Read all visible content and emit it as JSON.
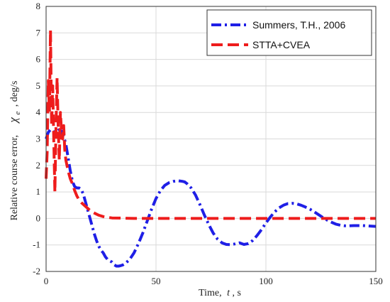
{
  "chart_data": {
    "type": "line",
    "title": "",
    "xlabel": "Time,  t, s",
    "ylabel": "Relative course error,   χe , deg/s",
    "ylabel_parts": {
      "main": "Relative course error,",
      "symbol": "χ",
      "subscript": "e",
      "unit": ", deg/s"
    },
    "xlabel_parts": {
      "main": "Time,",
      "symbol": "t",
      "unit": ", s"
    },
    "xlim": [
      0,
      150
    ],
    "ylim": [
      -2,
      8
    ],
    "xticks": [
      0,
      50,
      100,
      150
    ],
    "yticks": [
      -2,
      -1,
      0,
      1,
      2,
      3,
      4,
      5,
      6,
      7,
      8
    ],
    "grid": true,
    "legend_position": "top-right",
    "series": [
      {
        "name": "Summers, T.H., 2006",
        "color": "#1f1fe6",
        "dash": "dashdot",
        "x": [
          0,
          1,
          2,
          3,
          4,
          5,
          6,
          7,
          8,
          9,
          10,
          11,
          12,
          13,
          14,
          15,
          16,
          17,
          18,
          19,
          20,
          21,
          22,
          23,
          24,
          25,
          26,
          27,
          28,
          29,
          30,
          31,
          32,
          33,
          34,
          35,
          36,
          38,
          40,
          42,
          44,
          46,
          48,
          50,
          52,
          54,
          56,
          58,
          60,
          62,
          63,
          64,
          66,
          68,
          70,
          72,
          74,
          76,
          78,
          80,
          82,
          84,
          86,
          88,
          90,
          92,
          94,
          96,
          98,
          100,
          102,
          104,
          106,
          108,
          110,
          112,
          114,
          116,
          118,
          120,
          122,
          124,
          126,
          128,
          130,
          132,
          134,
          136,
          138,
          140,
          142,
          144,
          146,
          148,
          150
        ],
        "y": [
          3.0,
          3.25,
          3.35,
          3.3,
          3.25,
          3.3,
          3.35,
          3.3,
          3.1,
          2.8,
          2.3,
          1.8,
          1.4,
          1.2,
          1.15,
          1.15,
          1.1,
          0.9,
          0.6,
          0.3,
          0.0,
          -0.3,
          -0.6,
          -0.85,
          -1.05,
          -1.2,
          -1.3,
          -1.45,
          -1.55,
          -1.6,
          -1.65,
          -1.75,
          -1.8,
          -1.8,
          -1.78,
          -1.75,
          -1.7,
          -1.55,
          -1.3,
          -0.95,
          -0.55,
          -0.1,
          0.35,
          0.75,
          1.05,
          1.25,
          1.35,
          1.4,
          1.42,
          1.4,
          1.38,
          1.32,
          1.15,
          0.88,
          0.52,
          0.13,
          -0.23,
          -0.55,
          -0.78,
          -0.92,
          -0.98,
          -0.99,
          -0.96,
          -0.92,
          -0.98,
          -0.95,
          -0.83,
          -0.64,
          -0.42,
          -0.17,
          0.05,
          0.25,
          0.4,
          0.5,
          0.56,
          0.57,
          0.55,
          0.5,
          0.43,
          0.35,
          0.25,
          0.14,
          0.03,
          -0.07,
          -0.15,
          -0.22,
          -0.26,
          -0.28,
          -0.28,
          -0.27,
          -0.27,
          -0.27,
          -0.28,
          -0.29,
          -0.3
        ]
      },
      {
        "name": "STTA+CVEA",
        "color": "#ee1c1c",
        "dash": "dashed",
        "x": [
          0,
          0.5,
          1,
          1.5,
          2,
          2.5,
          3,
          3.5,
          4,
          4.5,
          5,
          5.5,
          6,
          6.5,
          7,
          7.5,
          8,
          8.5,
          9,
          10,
          11,
          12,
          13,
          14,
          15,
          16,
          18,
          20,
          22,
          24,
          26,
          28,
          30,
          35,
          40,
          50,
          60,
          80,
          100,
          120,
          140,
          150
        ],
        "y": [
          1.5,
          2.5,
          5.2,
          4.0,
          7.1,
          3.5,
          5.0,
          3.0,
          1.0,
          3.5,
          5.3,
          3.5,
          2.2,
          4.0,
          3.3,
          3.0,
          3.5,
          2.6,
          2.2,
          1.8,
          1.5,
          1.3,
          1.05,
          0.85,
          0.7,
          0.6,
          0.45,
          0.3,
          0.2,
          0.12,
          0.07,
          0.04,
          0.02,
          0.01,
          0.0,
          0.0,
          0.0,
          0.0,
          0.0,
          0.0,
          0.0,
          0.0
        ]
      }
    ]
  }
}
